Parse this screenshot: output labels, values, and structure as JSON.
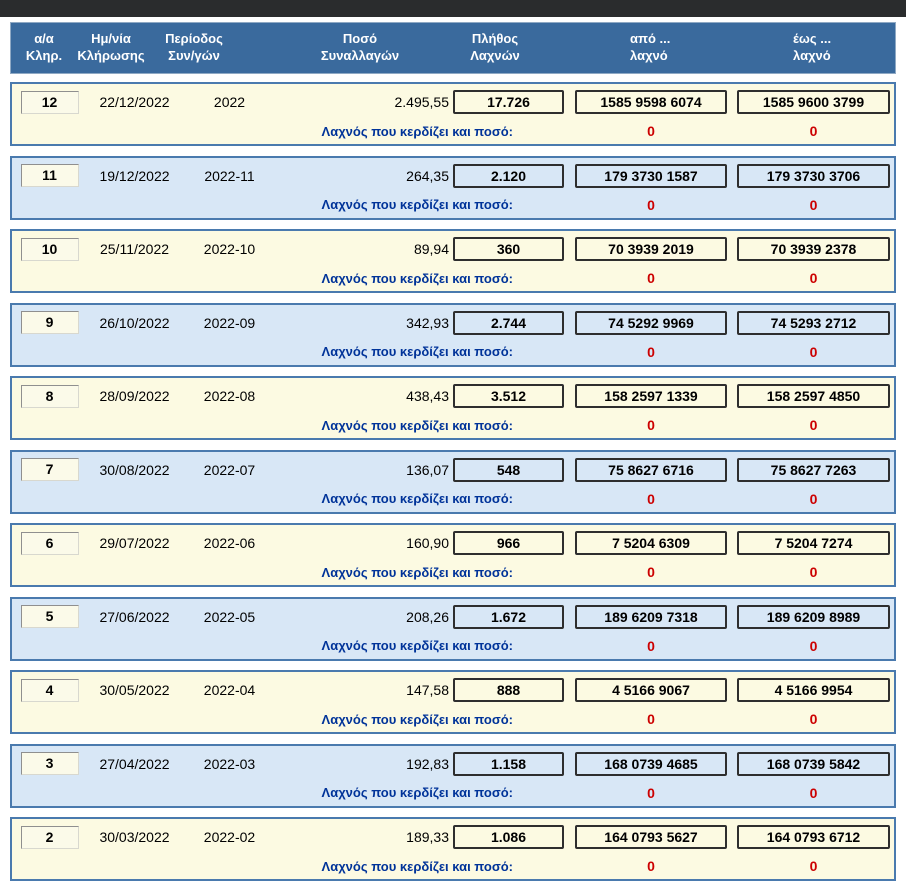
{
  "table": {
    "header": {
      "columns": [
        {
          "line1": "α/α",
          "line2": "Κληρ."
        },
        {
          "line1": "Ημ/νία",
          "line2": "Κλήρωσης"
        },
        {
          "line1": "Περίοδος",
          "line2": "Συν/γών"
        },
        {
          "line1": "Ποσό",
          "line2": "Συναλλαγών"
        },
        {
          "line1": "Πλήθος",
          "line2": "Λαχνών"
        },
        {
          "line1": "από ...",
          "line2": "λαχνό"
        },
        {
          "line1": "έως ...",
          "line2": "λαχνό"
        }
      ]
    },
    "winner_label": "Λαχνός που κερδίζει και ποσό:",
    "rows": [
      {
        "no": "12",
        "date": "22/12/2022",
        "period": "2022",
        "amount": "2.495,55",
        "count": "17.726",
        "from": "1585 9598 6074",
        "to": "1585 9600 3799",
        "win_from": "0",
        "win_to": "0"
      },
      {
        "no": "11",
        "date": "19/12/2022",
        "period": "2022-11",
        "amount": "264,35",
        "count": "2.120",
        "from": "179 3730 1587",
        "to": "179 3730 3706",
        "win_from": "0",
        "win_to": "0"
      },
      {
        "no": "10",
        "date": "25/11/2022",
        "period": "2022-10",
        "amount": "89,94",
        "count": "360",
        "from": "70 3939 2019",
        "to": "70 3939 2378",
        "win_from": "0",
        "win_to": "0"
      },
      {
        "no": "9",
        "date": "26/10/2022",
        "period": "2022-09",
        "amount": "342,93",
        "count": "2.744",
        "from": "74 5292 9969",
        "to": "74 5293 2712",
        "win_from": "0",
        "win_to": "0"
      },
      {
        "no": "8",
        "date": "28/09/2022",
        "period": "2022-08",
        "amount": "438,43",
        "count": "3.512",
        "from": "158 2597 1339",
        "to": "158 2597 4850",
        "win_from": "0",
        "win_to": "0"
      },
      {
        "no": "7",
        "date": "30/08/2022",
        "period": "2022-07",
        "amount": "136,07",
        "count": "548",
        "from": "75 8627 6716",
        "to": "75 8627 7263",
        "win_from": "0",
        "win_to": "0"
      },
      {
        "no": "6",
        "date": "29/07/2022",
        "period": "2022-06",
        "amount": "160,90",
        "count": "966",
        "from": "7 5204 6309",
        "to": "7 5204 7274",
        "win_from": "0",
        "win_to": "0"
      },
      {
        "no": "5",
        "date": "27/06/2022",
        "period": "2022-05",
        "amount": "208,26",
        "count": "1.672",
        "from": "189 6209 7318",
        "to": "189 6209 8989",
        "win_from": "0",
        "win_to": "0"
      },
      {
        "no": "4",
        "date": "30/05/2022",
        "period": "2022-04",
        "amount": "147,58",
        "count": "888",
        "from": "4 5166 9067",
        "to": "4 5166 9954",
        "win_from": "0",
        "win_to": "0"
      },
      {
        "no": "3",
        "date": "27/04/2022",
        "period": "2022-03",
        "amount": "192,83",
        "count": "1.158",
        "from": "168 0739 4685",
        "to": "168 0739 5842",
        "win_from": "0",
        "win_to": "0"
      },
      {
        "no": "2",
        "date": "30/03/2022",
        "period": "2022-02",
        "amount": "189,33",
        "count": "1.086",
        "from": "164 0793 5627",
        "to": "164 0793 6712",
        "win_from": "0",
        "win_to": "0"
      }
    ]
  },
  "colors": {
    "top_bar": "#2a2c2d",
    "header_bg": "#3a6a9d",
    "row_border": "#4a7aae",
    "row_yellow": "#fcfae2",
    "row_blue": "#d8e7f6",
    "winner_label_blue": "#003399",
    "winning_value_red": "#cc0000"
  }
}
